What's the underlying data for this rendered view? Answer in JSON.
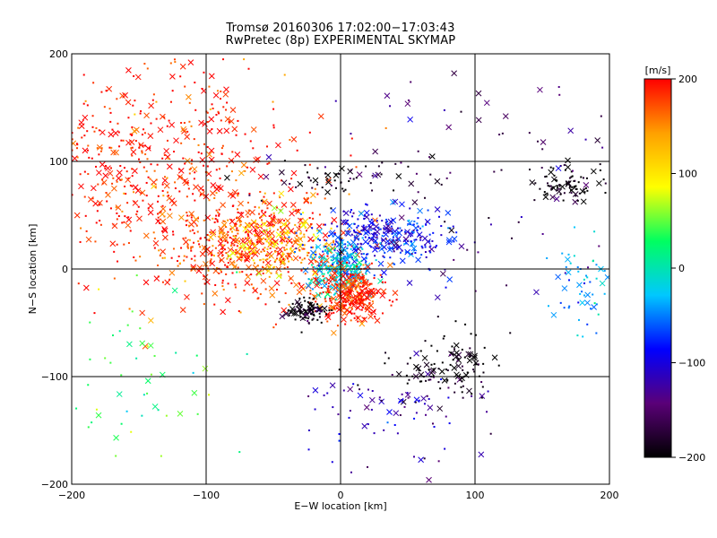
{
  "chart_data": {
    "type": "scatter",
    "title": "Tromsø 20160306 17:02:00−17:03:43",
    "subtitle": "RwPretec (8p) EXPERIMENTAL SKYMAP",
    "xlabel": "E−W location [km]",
    "ylabel": "N−S location [km]",
    "xlim": [
      -200,
      200
    ],
    "ylim": [
      -200,
      200
    ],
    "xticks": [
      -200,
      -100,
      0,
      100,
      200
    ],
    "yticks": [
      -200,
      -100,
      0,
      100,
      200
    ],
    "xtick_labels": [
      "−200",
      "−100",
      "0",
      "100",
      "200"
    ],
    "ytick_labels": [
      "−200",
      "−100",
      "0",
      "100",
      "200"
    ],
    "grid": true,
    "markers": [
      "x",
      "dot"
    ],
    "colorbar": {
      "label": "[m/s]",
      "range": [
        -200,
        200
      ],
      "ticks": [
        200,
        100,
        0,
        -100,
        -200
      ],
      "tick_labels": [
        "200",
        "100",
        "0",
        "−100",
        "−200"
      ],
      "colors": [
        "#000000",
        "#5a0078",
        "#0000ff",
        "#00c8ff",
        "#00ff60",
        "#ffff00",
        "#ffa000",
        "#ff0000"
      ]
    },
    "clusters": [
      {
        "x": -140,
        "y": 90,
        "sx": 55,
        "sy": 55,
        "v": 195,
        "count": 650
      },
      {
        "x": -60,
        "y": 20,
        "sx": 35,
        "sy": 25,
        "v": 180,
        "count": 500
      },
      {
        "x": -50,
        "y": 25,
        "sx": 20,
        "sy": 15,
        "v": 110,
        "count": 120
      },
      {
        "x": 30,
        "y": 30,
        "sx": 25,
        "sy": 15,
        "v": -90,
        "count": 320
      },
      {
        "x": 0,
        "y": 0,
        "sx": 10,
        "sy": 12,
        "v": -20,
        "count": 260
      },
      {
        "x": 10,
        "y": -25,
        "sx": 12,
        "sy": 12,
        "v": 190,
        "count": 300
      },
      {
        "x": -25,
        "y": -40,
        "sx": 8,
        "sy": 6,
        "v": -200,
        "count": 100
      },
      {
        "x": 80,
        "y": -90,
        "sx": 20,
        "sy": 15,
        "v": -200,
        "count": 120
      },
      {
        "x": 165,
        "y": 80,
        "sx": 12,
        "sy": 10,
        "v": -200,
        "count": 90
      },
      {
        "x": 0,
        "y": 85,
        "sx": 30,
        "sy": 10,
        "v": -190,
        "count": 60
      },
      {
        "x": 45,
        "y": -130,
        "sx": 30,
        "sy": 25,
        "v": -120,
        "count": 80
      },
      {
        "x": 180,
        "y": -20,
        "sx": 12,
        "sy": 20,
        "v": -40,
        "count": 60
      },
      {
        "x": -150,
        "y": -110,
        "sx": 40,
        "sy": 50,
        "v": 40,
        "count": 60
      },
      {
        "x": 110,
        "y": 100,
        "sx": 60,
        "sy": 60,
        "v": -150,
        "count": 80
      }
    ]
  }
}
